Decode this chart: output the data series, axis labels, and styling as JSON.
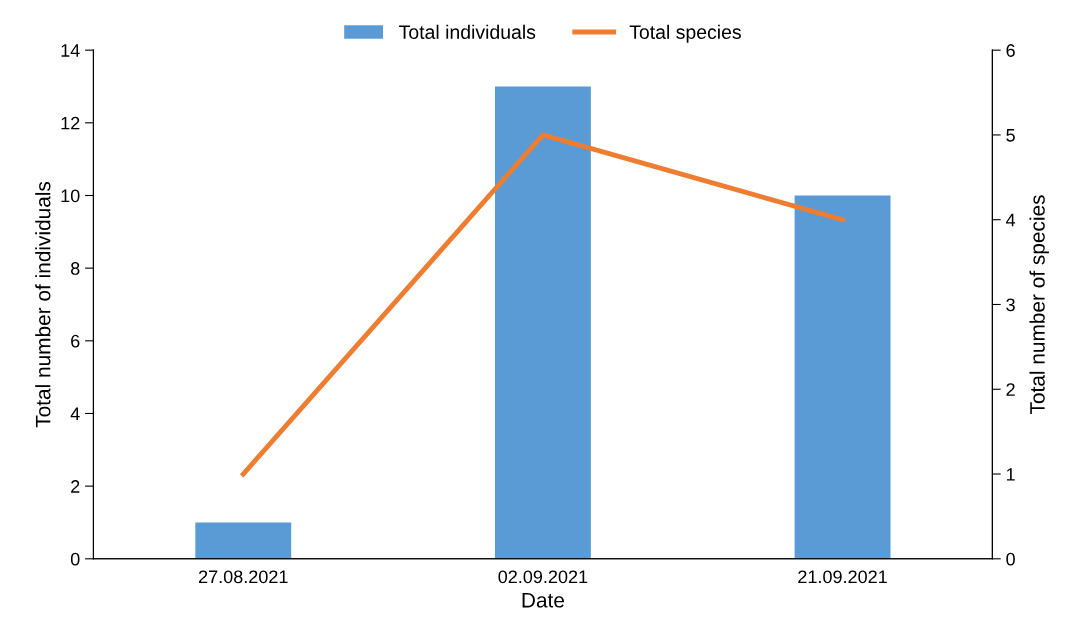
{
  "chart_data": {
    "type": "bar",
    "xlabel": "Date",
    "ylabel": "Total number of individuals",
    "y2label": "Total number of species",
    "categories": [
      "27.08.2021",
      "02.09.2021",
      "21.09.2021"
    ],
    "series": [
      {
        "name": "Total individuals",
        "color": "#5b9bd5",
        "values": [
          1,
          13,
          10
        ]
      },
      {
        "name": "Total species",
        "type": "line",
        "axis": "y2",
        "color": "#ed7d31",
        "values": [
          1,
          5,
          4
        ]
      }
    ],
    "ylim": [
      0,
      14
    ],
    "yticks": [
      0,
      2,
      4,
      6,
      8,
      10,
      12,
      14
    ],
    "y2lim": [
      0,
      6
    ],
    "y2ticks": [
      0,
      1,
      2,
      3,
      4,
      5,
      6
    ],
    "grid": false,
    "legend": "top",
    "marker": "none",
    "line_style": "solid"
  }
}
